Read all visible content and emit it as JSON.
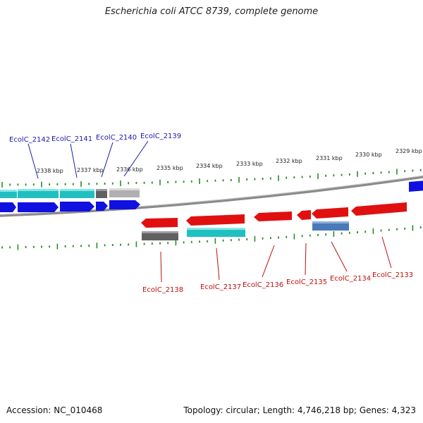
{
  "title": "Escherichia coli ATCC 8739, complete genome",
  "footer": {
    "accession": "Accession: NC_010468",
    "summary": "Topology: circular; Length: 4,746,218 bp; Genes: 4,323"
  },
  "colors": {
    "forward_cds": "#1010e0",
    "reverse_cds": "#e01010",
    "teal_feature": "#20c0c0",
    "grey_feature": "#606060",
    "lightgrey_feature": "#b0b0b0",
    "steelblue_feature": "#4a7ab8",
    "tick": "#2a8a2a",
    "backbone": "#8a8a8a",
    "label_forward": "#1a1aa6",
    "label_reverse": "#bb1010"
  },
  "scale_labels": [
    "2338 kbp",
    "2337 kbp",
    "2336 kbp",
    "2335 kbp",
    "2334 kbp",
    "2333 kbp",
    "2332 kbp",
    "2331 kbp",
    "2330 kbp",
    "2329 kbp"
  ],
  "genes_forward": [
    {
      "label": "EcolC_2142",
      "icon": "gene-callout"
    },
    {
      "label": "EcolC_2141",
      "icon": "gene-callout"
    },
    {
      "label": "EcolC_2140",
      "icon": "gene-callout"
    },
    {
      "label": "EcolC_2139",
      "icon": "gene-callout"
    }
  ],
  "genes_reverse": [
    {
      "label": "EcolC_2138",
      "icon": "gene-callout"
    },
    {
      "label": "EcolC_2137",
      "icon": "gene-callout"
    },
    {
      "label": "EcolC_2136",
      "icon": "gene-callout"
    },
    {
      "label": "EcolC_2135",
      "icon": "gene-callout"
    },
    {
      "label": "EcolC_2134",
      "icon": "gene-callout"
    },
    {
      "label": "EcolC_2133",
      "icon": "gene-callout"
    }
  ]
}
